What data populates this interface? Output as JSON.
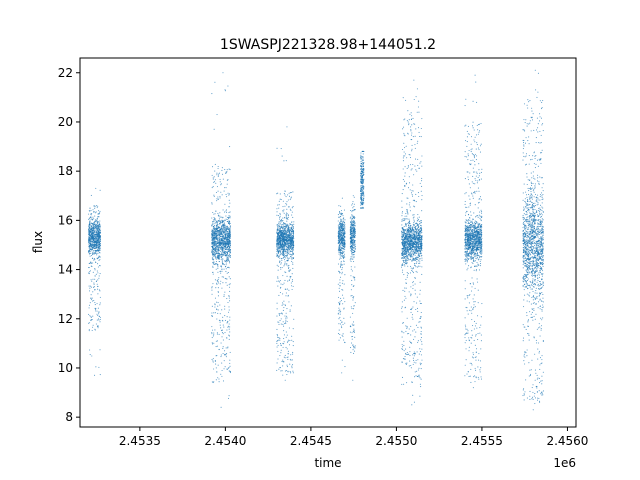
{
  "chart_data": {
    "type": "scatter",
    "title": "1SWASPJ221328.98+144051.2",
    "xlabel": "time",
    "ylabel": "flux",
    "x_offset_label": "1e6",
    "xlim": [
      2453150,
      2456050
    ],
    "ylim": [
      7.6,
      22.6
    ],
    "xticks": [
      2453500,
      2454000,
      2454500,
      2455000,
      2455500,
      2456000
    ],
    "xtick_labels": [
      "2.4535",
      "2.4540",
      "2.4545",
      "2.4550",
      "2.4555",
      "2.4560"
    ],
    "yticks": [
      8,
      10,
      12,
      14,
      16,
      18,
      20,
      22
    ],
    "ytick_labels": [
      "8",
      "10",
      "12",
      "14",
      "16",
      "18",
      "20",
      "22"
    ],
    "grid": false,
    "marker_color": "#1f77b4",
    "clusters": [
      {
        "x_start": 2453200,
        "x_end": 2453270,
        "core_center": 15.3,
        "core_spread": 0.35,
        "min": 9.7,
        "max": 17.3,
        "tail_low": 11.5,
        "tail_high": 16.6
      },
      {
        "x_start": 2453920,
        "x_end": 2454030,
        "core_center": 15.2,
        "core_spread": 0.45,
        "min": 8.4,
        "max": 22.0,
        "tail_low": 9.4,
        "tail_high": 18.2
      },
      {
        "x_start": 2454300,
        "x_end": 2454400,
        "core_center": 15.2,
        "core_spread": 0.35,
        "min": 9.5,
        "max": 19.8,
        "tail_low": 9.7,
        "tail_high": 17.2
      },
      {
        "x_start": 2454660,
        "x_end": 2454700,
        "core_center": 15.3,
        "core_spread": 0.4,
        "min": 9.8,
        "max": 16.9,
        "tail_low": 11.0,
        "tail_high": 16.6
      },
      {
        "x_start": 2454730,
        "x_end": 2454760,
        "core_center": 15.4,
        "core_spread": 0.45,
        "min": 9.5,
        "max": 17.0,
        "tail_low": 10.5,
        "tail_high": 16.8
      },
      {
        "x_start": 2454790,
        "x_end": 2454810,
        "core_center": 17.5,
        "core_spread": 0.6,
        "min": 16.5,
        "max": 18.8,
        "tail_low": 16.6,
        "tail_high": 18.6
      },
      {
        "x_start": 2455030,
        "x_end": 2455150,
        "core_center": 15.1,
        "core_spread": 0.4,
        "min": 8.5,
        "max": 21.7,
        "tail_low": 9.2,
        "tail_high": 20.5
      },
      {
        "x_start": 2455400,
        "x_end": 2455500,
        "core_center": 15.2,
        "core_spread": 0.4,
        "min": 9.2,
        "max": 21.9,
        "tail_low": 9.4,
        "tail_high": 20.0
      },
      {
        "x_start": 2455740,
        "x_end": 2455860,
        "core_center": 15.0,
        "core_spread": 1.1,
        "min": 8.3,
        "max": 22.1,
        "tail_low": 8.6,
        "tail_high": 21.0
      }
    ]
  }
}
